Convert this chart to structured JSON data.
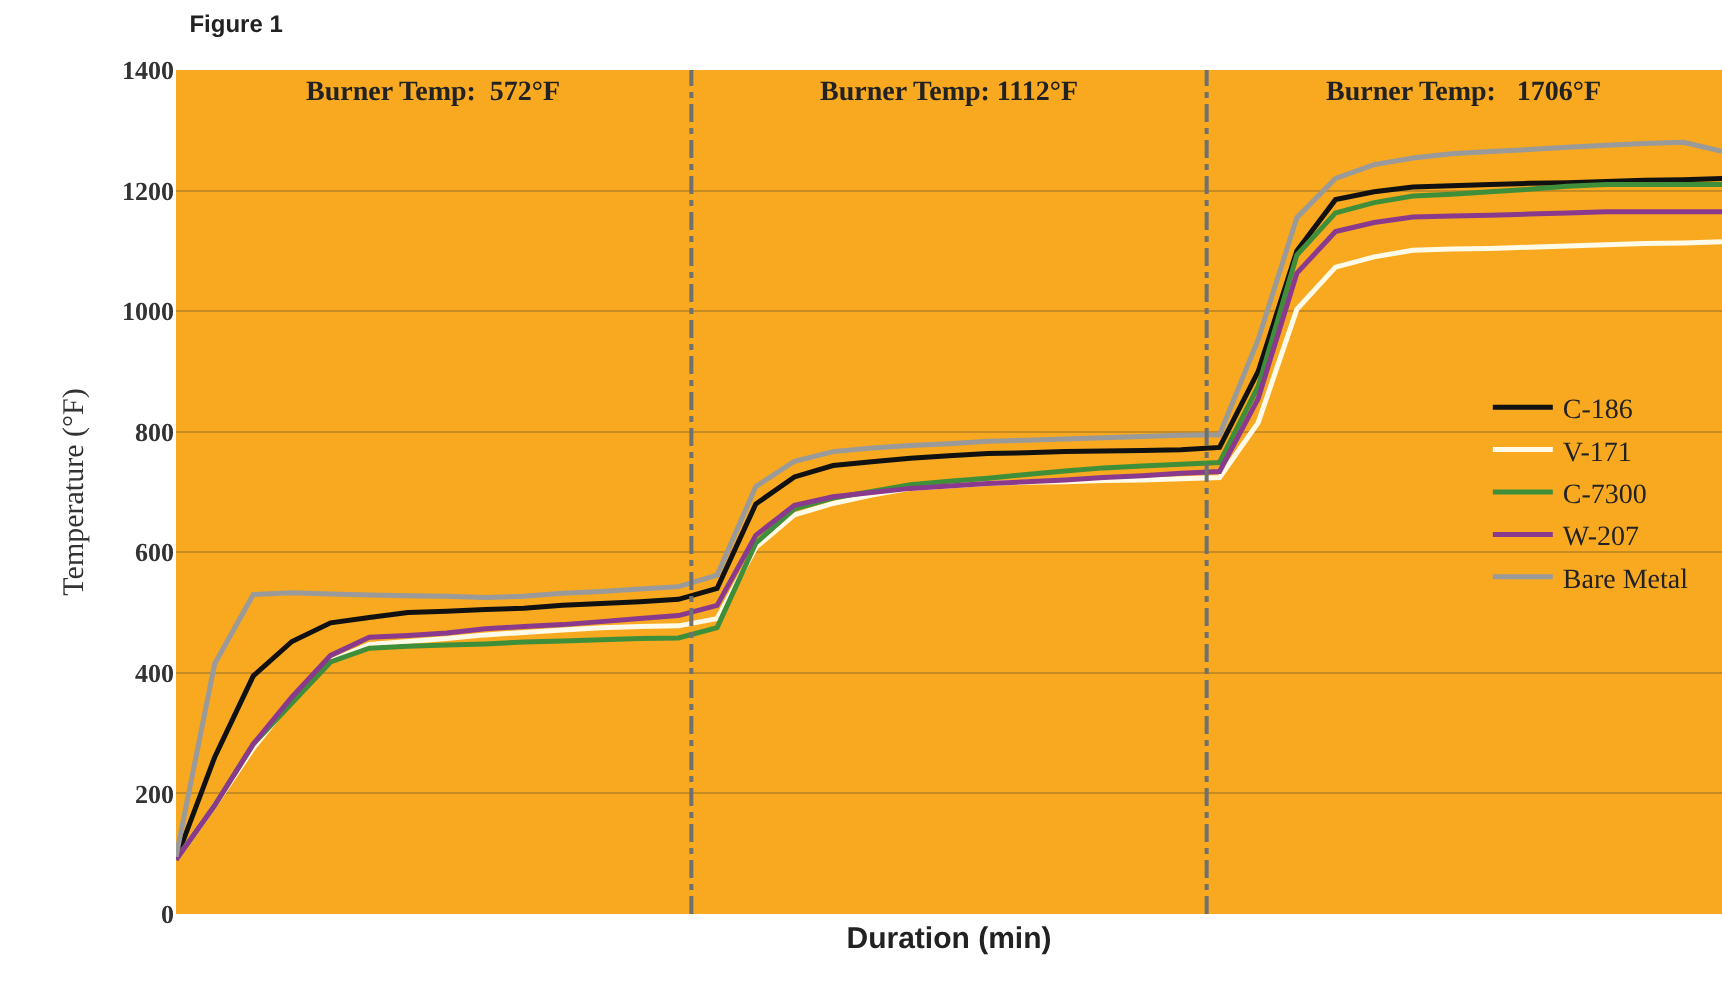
{
  "chart_data": {
    "type": "line",
    "title": "Figure 1",
    "xlabel": "Duration (min)",
    "ylabel": "Temperature (°F)",
    "annotations": [
      "Burner Temp:  572°F",
      "Burner Temp: 1112°F",
      "Burner Temp:   1706°F"
    ],
    "categories": [
      null,
      null,
      null,
      null,
      null,
      null,
      null,
      null,
      null,
      null,
      null,
      null,
      null,
      null,
      null,
      null,
      null,
      null,
      null,
      null,
      null,
      null,
      null,
      null,
      null,
      null,
      null,
      null,
      null,
      null,
      null,
      null,
      null,
      null,
      null,
      null,
      null,
      null,
      null,
      null,
      null
    ],
    "ylim": [
      0,
      1400
    ],
    "yticks": [
      0,
      200,
      400,
      600,
      800,
      1000,
      1200,
      1400
    ],
    "grid": "y",
    "legend": "right",
    "line_style": "solid",
    "series": [
      {
        "name": "C-186",
        "color": "#111111",
        "values": [
          90,
          260,
          395,
          452,
          483,
          492,
          500,
          502,
          505,
          507,
          512,
          515,
          518,
          522,
          540,
          680,
          725,
          744,
          750,
          756,
          760,
          764,
          765,
          767,
          768,
          769,
          770,
          774,
          900,
          1100,
          1185,
          1198,
          1206,
          1208,
          1210,
          1212,
          1213,
          1215,
          1217,
          1218,
          1220
        ]
      },
      {
        "name": "V-171",
        "color": "#fffbe8",
        "values": [
          90,
          180,
          275,
          355,
          420,
          447,
          452,
          457,
          463,
          467,
          471,
          475,
          477,
          478,
          490,
          608,
          662,
          681,
          695,
          706,
          710,
          714,
          716,
          717,
          719,
          720,
          722,
          724,
          815,
          1003,
          1073,
          1090,
          1101,
          1103,
          1104,
          1106,
          1108,
          1110,
          1112,
          1113,
          1115
        ]
      },
      {
        "name": "C-7300",
        "color": "#3f8f3a",
        "values": [
          90,
          180,
          282,
          350,
          418,
          441,
          444,
          446,
          448,
          451,
          453,
          455,
          457,
          458,
          475,
          615,
          672,
          690,
          701,
          712,
          718,
          723,
          729,
          735,
          740,
          743,
          746,
          749,
          875,
          1093,
          1163,
          1180,
          1191,
          1194,
          1198,
          1202,
          1207,
          1210,
          1210,
          1210,
          1210
        ]
      },
      {
        "name": "W-207",
        "color": "#8a3a8c",
        "values": [
          90,
          180,
          282,
          360,
          429,
          459,
          462,
          466,
          473,
          477,
          480,
          485,
          490,
          495,
          512,
          628,
          678,
          692,
          699,
          706,
          710,
          714,
          717,
          720,
          724,
          727,
          731,
          734,
          855,
          1063,
          1132,
          1147,
          1156,
          1158,
          1159,
          1161,
          1163,
          1165,
          1165,
          1165,
          1165
        ]
      },
      {
        "name": "Bare Metal",
        "color": "#9a9a9a",
        "values": [
          95,
          415,
          530,
          533,
          531,
          529,
          528,
          527,
          525,
          527,
          532,
          535,
          539,
          543,
          562,
          709,
          751,
          767,
          773,
          777,
          780,
          784,
          786,
          788,
          790,
          792,
          794,
          795,
          953,
          1155,
          1220,
          1243,
          1254,
          1261,
          1265,
          1268,
          1272,
          1275,
          1278,
          1280,
          1265
        ]
      }
    ]
  }
}
